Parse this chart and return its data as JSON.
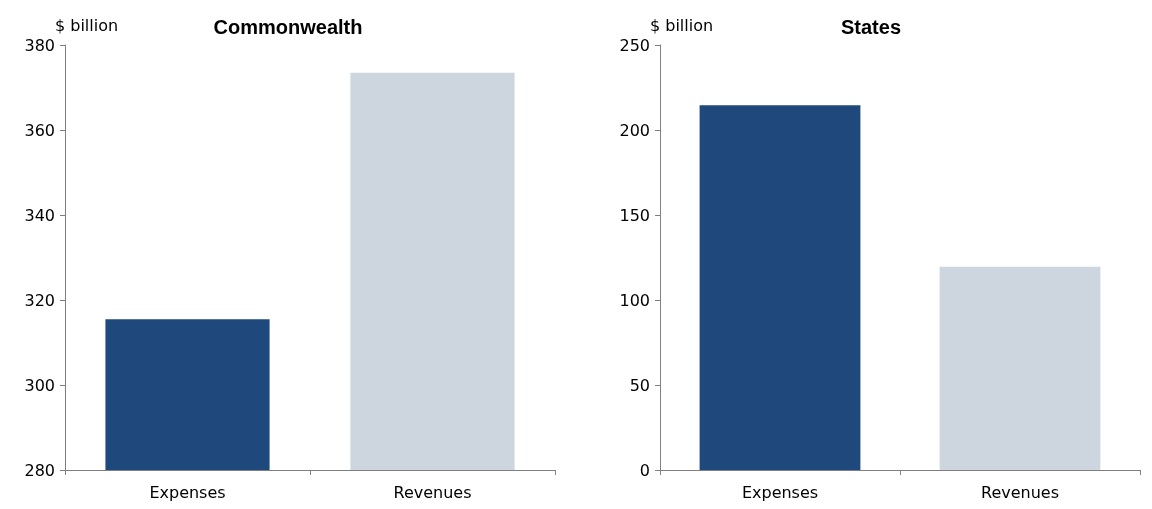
{
  "chart_data": [
    {
      "type": "bar",
      "title": "Commonwealth",
      "ylabel": "$ billion",
      "categories": [
        "Expenses",
        "Revenues"
      ],
      "values": [
        315.5,
        373.5
      ],
      "colors": [
        "#1f497d",
        "#cdd5df"
      ],
      "ylim": [
        280,
        380
      ],
      "yticks": [
        280,
        300,
        320,
        340,
        360,
        380
      ],
      "grid": false
    },
    {
      "type": "bar",
      "title": "States",
      "ylabel": "$ billion",
      "categories": [
        "Expenses",
        "Revenues"
      ],
      "values": [
        214.5,
        119.5
      ],
      "colors": [
        "#1f497d",
        "#cdd5df"
      ],
      "ylim": [
        0,
        250
      ],
      "yticks": [
        0,
        50,
        100,
        150,
        200,
        250
      ],
      "grid": false
    }
  ]
}
